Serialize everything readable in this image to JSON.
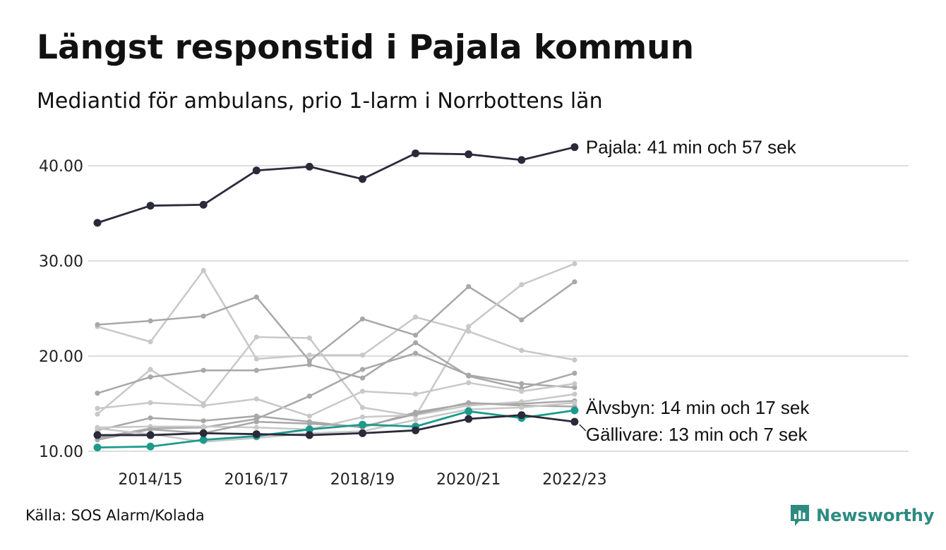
{
  "title": "Längst responstid i Pajala kommun",
  "subtitle": "Mediantid för ambulans, prio 1-larm i Norrbottens län",
  "source": "Källa: SOS Alarm/Kolada",
  "logo_text": "Newsworthy",
  "colors": {
    "highlight": "#2a2a3a",
    "accent": "#1d9a8c",
    "grey_mid": "#a8a8a8",
    "grey_light": "#c8c8c8",
    "grid": "#dddddd",
    "logo": "#2e8b80"
  },
  "chart_data": {
    "type": "line",
    "x": [
      "2013/14",
      "2014/15",
      "2015/16",
      "2016/17",
      "2017/18",
      "2018/19",
      "2019/20",
      "2020/21",
      "2021/22",
      "2022/23"
    ],
    "x_tick_labels": [
      "2014/15",
      "2016/17",
      "2018/19",
      "2020/21",
      "2022/23"
    ],
    "y_tick_labels": [
      "10.00",
      "20.00",
      "30.00",
      "40.00"
    ],
    "ylim": [
      9.5,
      43.5
    ],
    "grid": "horizontal",
    "highlighted": [
      {
        "name": "Pajala",
        "label": "Pajala: 41 min och 57 sek",
        "color": "#2a2a3a",
        "values": [
          34.0,
          35.8,
          35.9,
          39.5,
          39.9,
          38.6,
          41.3,
          41.2,
          40.6,
          41.95
        ]
      },
      {
        "name": "Älvsbyn",
        "label": "Älvsbyn: 14 min och 17 sek",
        "color": "#1d9a8c",
        "values": [
          10.4,
          10.5,
          11.2,
          11.6,
          12.3,
          12.8,
          12.6,
          14.2,
          13.5,
          14.3
        ]
      },
      {
        "name": "Gällivare",
        "label": "Gällivare: 13 min och 7 sek",
        "color": "#2a2a3a",
        "values": [
          11.7,
          11.7,
          11.9,
          11.8,
          11.7,
          11.9,
          12.2,
          13.4,
          13.8,
          13.1
        ]
      }
    ],
    "other_series": [
      {
        "color": "#c8c8c8",
        "values": [
          23.1,
          21.5,
          29.0,
          19.7,
          20.1,
          20.1,
          24.1,
          22.6,
          20.6,
          19.6
        ]
      },
      {
        "color": "#a8a8a8",
        "values": [
          23.3,
          23.7,
          24.2,
          26.2,
          19.5,
          23.9,
          22.2,
          27.3,
          23.8,
          27.8
        ]
      },
      {
        "color": "#c8c8c8",
        "values": [
          13.9,
          18.6,
          15.0,
          22.0,
          21.9,
          14.6,
          13.7,
          23.1,
          27.5,
          29.7
        ]
      },
      {
        "color": "#a8a8a8",
        "values": [
          16.1,
          17.8,
          18.5,
          18.5,
          19.1,
          17.7,
          21.4,
          17.9,
          16.6,
          18.2
        ]
      },
      {
        "color": "#a8a8a8",
        "values": [
          11.4,
          12.4,
          12.5,
          13.4,
          15.8,
          18.6,
          20.3,
          18.0,
          17.1,
          16.7
        ]
      },
      {
        "color": "#c8c8c8",
        "values": [
          14.5,
          15.1,
          14.8,
          15.5,
          13.7,
          16.3,
          16.0,
          17.2,
          16.3,
          17.1
        ]
      },
      {
        "color": "#a8a8a8",
        "values": [
          12.2,
          13.5,
          13.2,
          13.7,
          13.1,
          12.5,
          14.1,
          15.0,
          15.0,
          15.3
        ]
      },
      {
        "color": "#c8c8c8",
        "values": [
          12.5,
          12.6,
          12.6,
          12.5,
          12.3,
          13.6,
          13.8,
          14.8,
          15.2,
          16.0
        ]
      },
      {
        "color": "#a8a8a8",
        "values": [
          11.2,
          12.3,
          11.9,
          13.1,
          12.9,
          12.6,
          13.9,
          15.1,
          14.8,
          14.7
        ]
      },
      {
        "color": "#c8c8c8",
        "values": [
          12.4,
          11.8,
          11.0,
          11.4,
          11.9,
          12.1,
          13.3,
          14.4,
          14.6,
          15.1
        ]
      }
    ]
  }
}
